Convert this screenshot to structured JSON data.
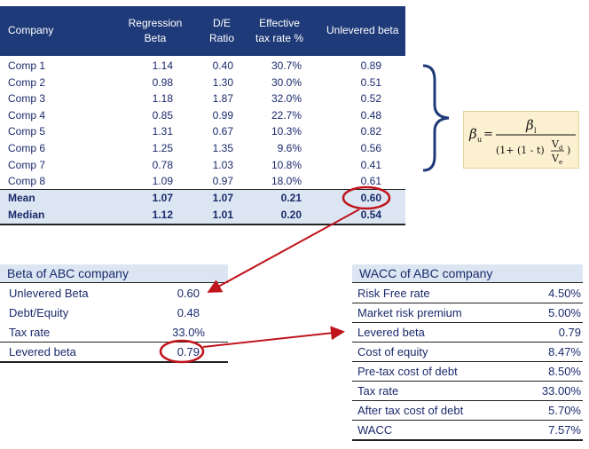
{
  "comps_table": {
    "headers": [
      "Company",
      "Regression\nBeta",
      "D/E\nRatio",
      "Effective\ntax rate %",
      "Unlevered beta"
    ],
    "rows": [
      {
        "company": "Comp 1",
        "beta": "1.14",
        "de": "0.40",
        "tax": "30.7%",
        "unlevered": "0.89"
      },
      {
        "company": "Comp 2",
        "beta": "0.98",
        "de": "1.30",
        "tax": "30.0%",
        "unlevered": "0.51"
      },
      {
        "company": "Comp 3",
        "beta": "1.18",
        "de": "1.87",
        "tax": "32.0%",
        "unlevered": "0.52"
      },
      {
        "company": "Comp 4",
        "beta": "0.85",
        "de": "0.99",
        "tax": "22.7%",
        "unlevered": "0.48"
      },
      {
        "company": "Comp 5",
        "beta": "1.31",
        "de": "0.67",
        "tax": "10.3%",
        "unlevered": "0.82"
      },
      {
        "company": "Comp 6",
        "beta": "1.25",
        "de": "1.35",
        "tax": "9.6%",
        "unlevered": "0.56"
      },
      {
        "company": "Comp 7",
        "beta": "0.78",
        "de": "1.03",
        "tax": "10.8%",
        "unlevered": "0.41"
      },
      {
        "company": "Comp 8",
        "beta": "1.09",
        "de": "0.97",
        "tax": "18.0%",
        "unlevered": "0.61"
      }
    ],
    "summary": [
      {
        "company": "Mean",
        "beta": "1.07",
        "de": "1.07",
        "tax": "0.21",
        "unlevered": "0.60"
      },
      {
        "company": "Median",
        "beta": "1.12",
        "de": "1.01",
        "tax": "0.20",
        "unlevered": "0.54"
      }
    ]
  },
  "formula": {
    "lhs": "β",
    "lhs_sub": "u",
    "numerator": "β",
    "numerator_sub": "l",
    "denom_left": "(1+ (1 - t)",
    "vd": "V",
    "vd_sub": "d",
    "ve": "V",
    "ve_sub": "e",
    "denom_right": ")"
  },
  "beta_table": {
    "title": "Beta of ABC company",
    "rows": [
      {
        "label": "Unlevered Beta",
        "value": "0.60"
      },
      {
        "label": "Debt/Equity",
        "value": "0.48"
      },
      {
        "label": "Tax rate",
        "value": "33.0%"
      },
      {
        "label": "Levered beta",
        "value": "0.79"
      }
    ]
  },
  "wacc_table": {
    "title": "WACC of ABC company",
    "rows": [
      {
        "label": "Risk Free rate",
        "value": "4.50%"
      },
      {
        "label": "Market risk premium",
        "value": "5.00%"
      },
      {
        "label": "Levered beta",
        "value": "0.79"
      },
      {
        "label": "Cost of equity",
        "value": "8.47%"
      },
      {
        "label": "Pre-tax cost of debt",
        "value": "8.50%"
      },
      {
        "label": "Tax rate",
        "value": "33.00%"
      },
      {
        "label": "After tax cost of debt",
        "value": "5.70%"
      },
      {
        "label": "WACC",
        "value": "7.57%"
      }
    ]
  },
  "colors": {
    "header_bg": "#1f3a78",
    "text": "#1a2a6c",
    "summary_bg": "#dce6f2",
    "annotation_red": "#c0141c",
    "bracket": "#1f3a78",
    "formula_bg": "#fbf0cf"
  }
}
